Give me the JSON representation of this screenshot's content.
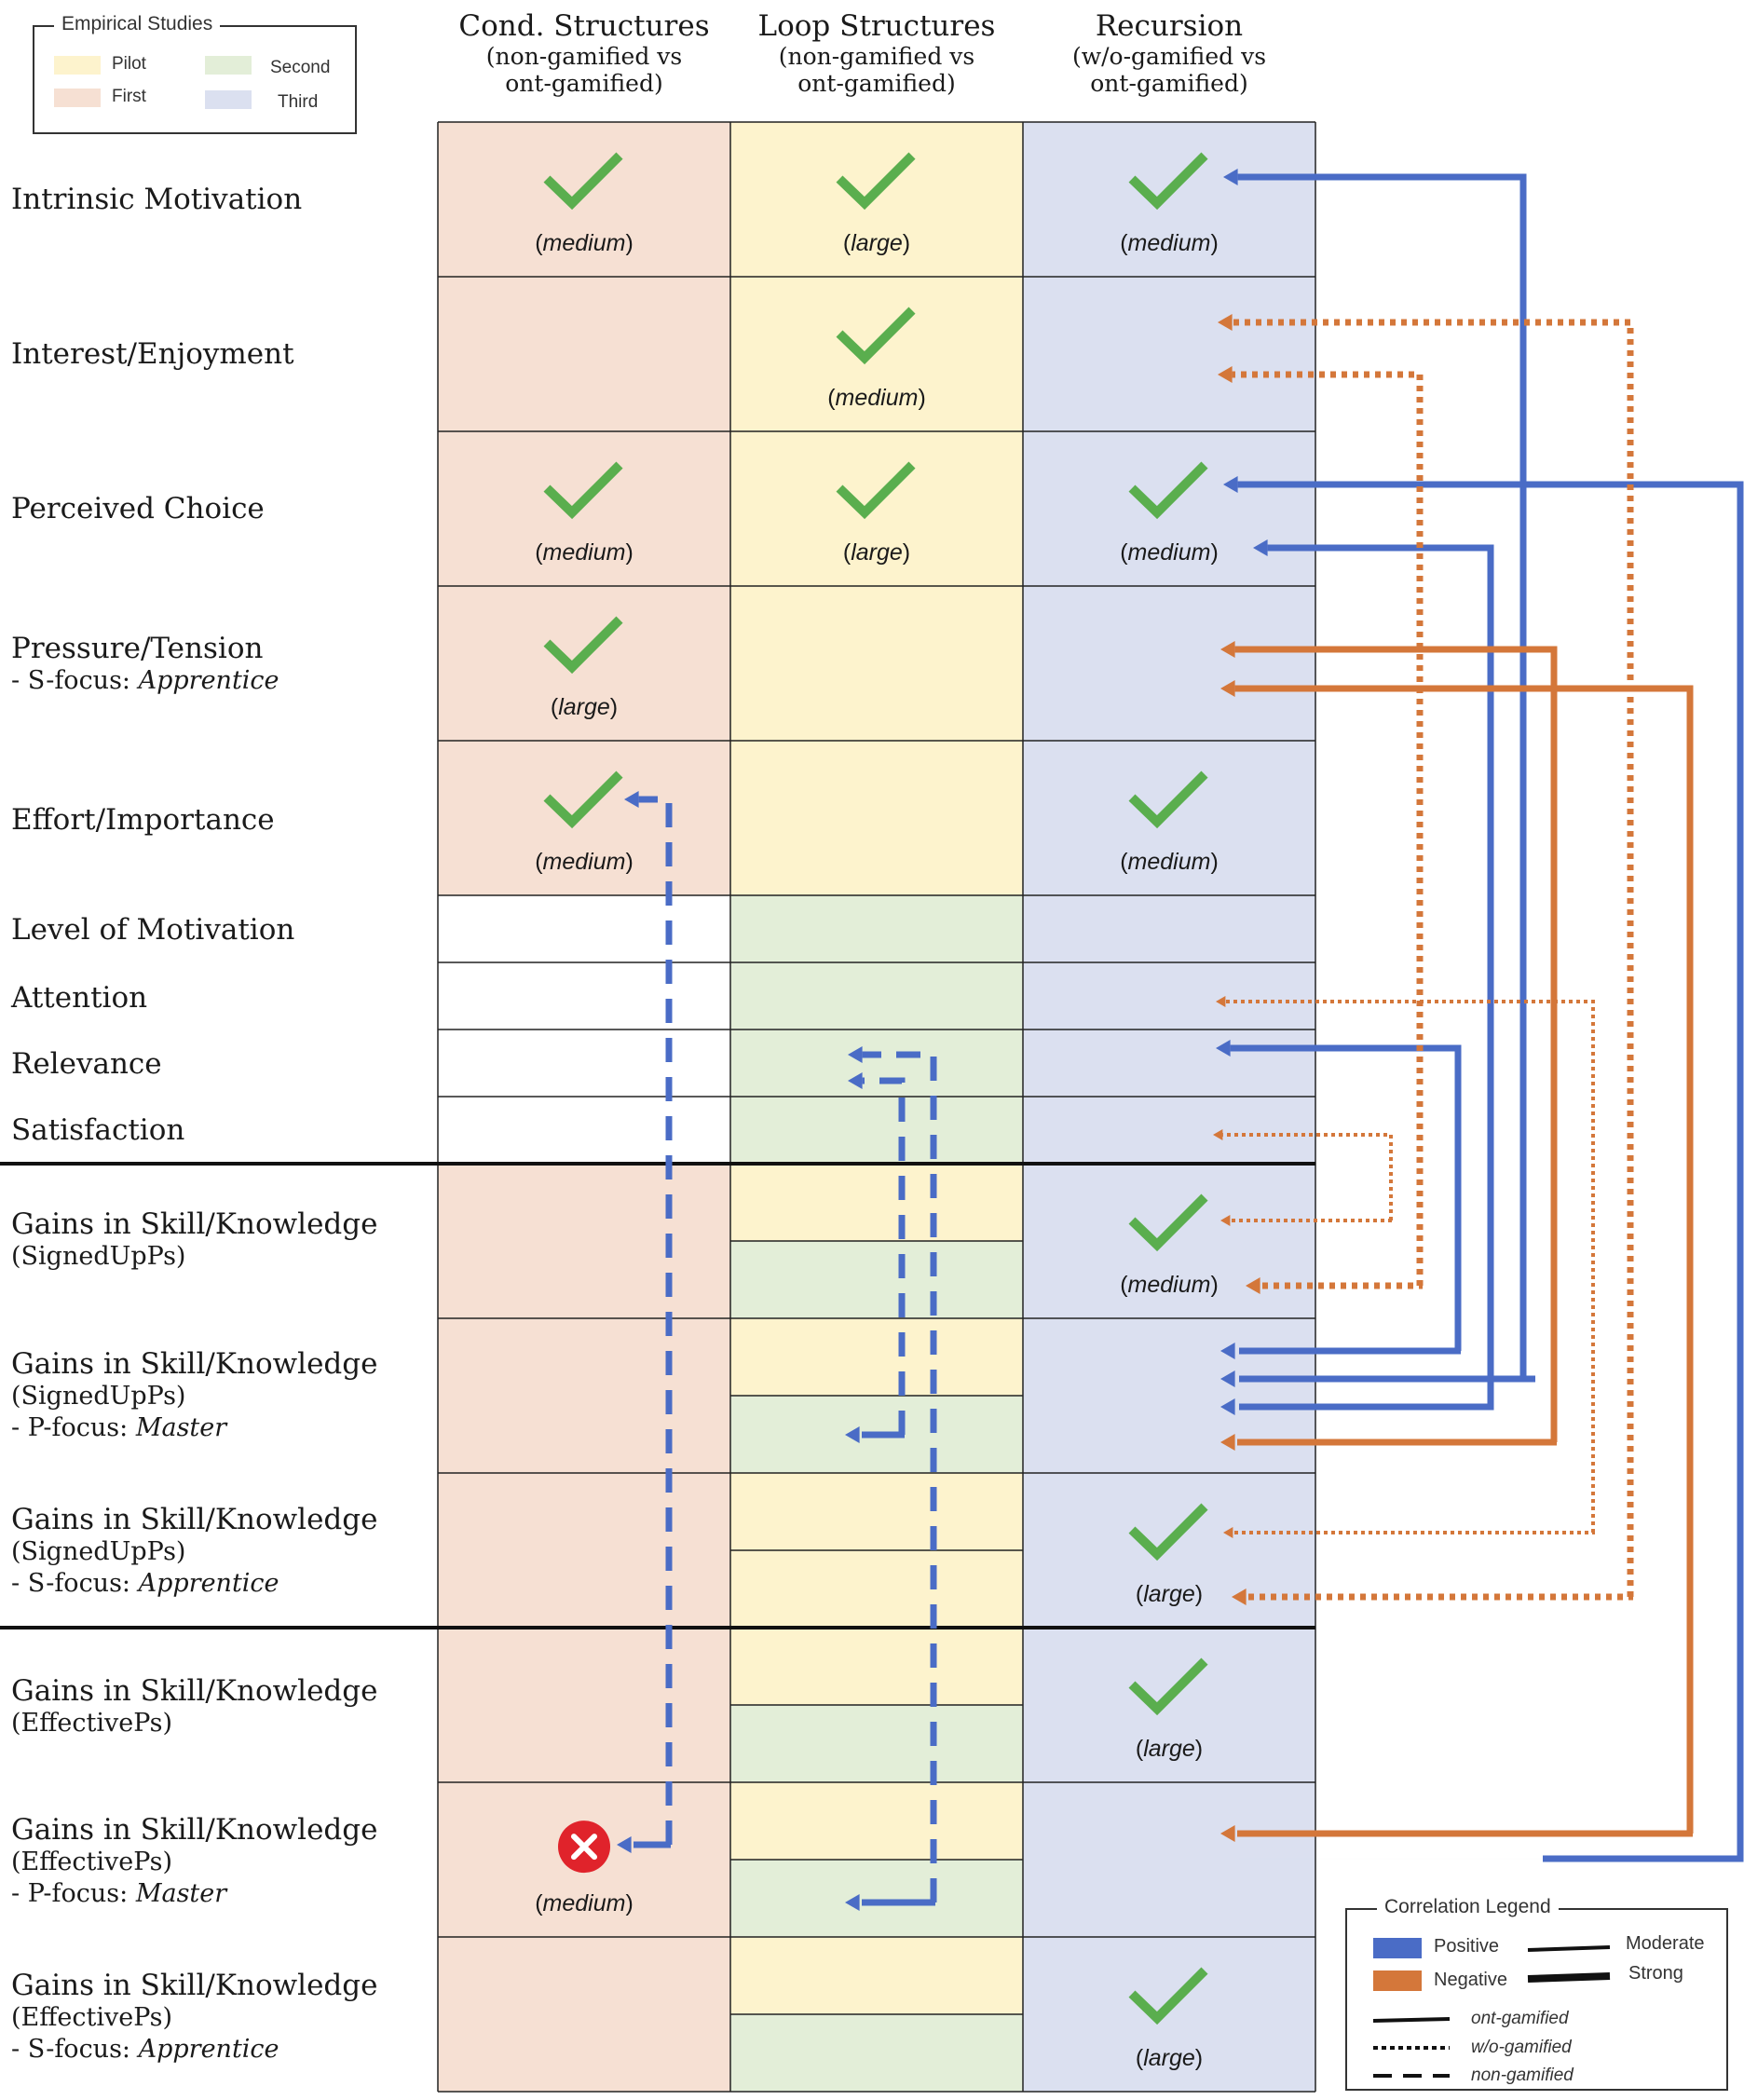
{
  "study_legend": {
    "title": "Empirical Studies",
    "items": [
      {
        "label": "Pilot",
        "color": "#fdf3cd"
      },
      {
        "label": "Second",
        "color": "#e3eed8"
      },
      {
        "label": "First",
        "color": "#f6e0d3"
      },
      {
        "label": "Third",
        "color": "#dbe0f0"
      }
    ]
  },
  "columns": [
    {
      "title": "Cond. Structures",
      "subtitle_1": "(non-gamified vs",
      "subtitle_2": "ont-gamified)"
    },
    {
      "title": "Loop Structures",
      "subtitle_1": "(non-gamified vs",
      "subtitle_2": "ont-gamified)"
    },
    {
      "title": "Recursion",
      "subtitle_1": "(w/o-gamified vs",
      "subtitle_2": "ont-gamified)"
    }
  ],
  "rows": [
    {
      "label": "Intrinsic Motivation"
    },
    {
      "label": "Interest/Enjoyment"
    },
    {
      "label": "Perceived Choice"
    },
    {
      "label": "Pressure/Tension",
      "sub_prefix": "- S-focus: ",
      "sub_italic": "Apprentice"
    },
    {
      "label": "Effort/Importance"
    },
    {
      "label": "Level of Motivation"
    },
    {
      "label": "Attention"
    },
    {
      "label": "Relevance"
    },
    {
      "label": "Satisfaction"
    },
    {
      "label": "Gains in Skill/Knowledge",
      "label_2": "(SignedUpPs)"
    },
    {
      "label": "Gains in Skill/Knowledge",
      "label_2": "(SignedUpPs)",
      "sub_prefix": "- P-focus: ",
      "sub_italic": "Master"
    },
    {
      "label": "Gains in Skill/Knowledge",
      "label_2": "(SignedUpPs)",
      "sub_prefix": "- S-focus: ",
      "sub_italic": "Apprentice"
    },
    {
      "label": "Gains in Skill/Knowledge",
      "label_2": "(EffectivePs)"
    },
    {
      "label": "Gains in Skill/Knowledge",
      "label_2": "(EffectivePs)",
      "sub_prefix": "- P-focus: ",
      "sub_italic": "Master"
    },
    {
      "label": "Gains in Skill/Knowledge",
      "label_2": "(EffectivePs)",
      "sub_prefix": "- S-focus: ",
      "sub_italic": "Apprentice"
    }
  ],
  "effect_notes": {
    "medium": "medium",
    "large": "large"
  },
  "cells": [
    {
      "row": 0,
      "col": 0,
      "mark": "check",
      "effect": "medium"
    },
    {
      "row": 0,
      "col": 1,
      "mark": "check",
      "effect": "large"
    },
    {
      "row": 0,
      "col": 2,
      "mark": "check",
      "effect": "medium"
    },
    {
      "row": 1,
      "col": 1,
      "mark": "check",
      "effect": "medium"
    },
    {
      "row": 2,
      "col": 0,
      "mark": "check",
      "effect": "medium"
    },
    {
      "row": 2,
      "col": 1,
      "mark": "check",
      "effect": "large"
    },
    {
      "row": 2,
      "col": 2,
      "mark": "check",
      "effect": "medium"
    },
    {
      "row": 3,
      "col": 0,
      "mark": "check",
      "effect": "large"
    },
    {
      "row": 4,
      "col": 0,
      "mark": "check",
      "effect": "medium"
    },
    {
      "row": 4,
      "col": 2,
      "mark": "check",
      "effect": "medium"
    },
    {
      "row": 9,
      "col": 2,
      "mark": "check",
      "effect": "medium"
    },
    {
      "row": 11,
      "col": 2,
      "mark": "check",
      "effect": "large"
    },
    {
      "row": 12,
      "col": 2,
      "mark": "check",
      "effect": "large"
    },
    {
      "row": 13,
      "col": 0,
      "mark": "cross",
      "effect": "medium"
    },
    {
      "row": 14,
      "col": 2,
      "mark": "check",
      "effect": "large"
    }
  ],
  "correlation_legend": {
    "title": "Correlation Legend",
    "positive": "Positive",
    "negative": "Negative",
    "moderate": "Moderate",
    "strong": "Strong",
    "ont": "ont-gamified",
    "wo": "w/o-gamified",
    "non": "non-gamified"
  },
  "colors": {
    "positive": "#4a6cc6",
    "negative": "#d4773a",
    "check": "#5aae4e",
    "cross": "#e0232b",
    "pilot": "#fdf3cd",
    "first": "#f6e0d3",
    "second": "#e3eed8",
    "third": "#dbe0f0"
  }
}
